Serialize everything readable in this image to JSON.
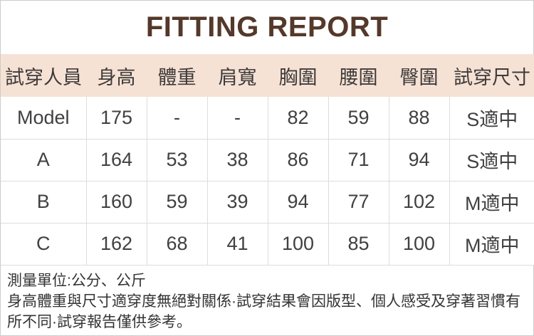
{
  "title": "FITTING REPORT",
  "colors": {
    "title_text": "#54382a",
    "header_background": "#f5e2d5",
    "header_text": "#3f3a39",
    "body_text": "#404040",
    "grid_line": "#dddddd",
    "frame_border": "#cccccc",
    "note_text": "#333333"
  },
  "table": {
    "headers": [
      "試穿人員",
      "身高",
      "體重",
      "肩寬",
      "胸圍",
      "腰圍",
      "臀圍",
      "試穿尺寸"
    ],
    "rows": [
      [
        "Model",
        "175",
        "-",
        "-",
        "82",
        "59",
        "88",
        "S適中"
      ],
      [
        "A",
        "164",
        "53",
        "38",
        "86",
        "71",
        "94",
        "S適中"
      ],
      [
        "B",
        "160",
        "59",
        "39",
        "94",
        "77",
        "102",
        "M適中"
      ],
      [
        "C",
        "162",
        "68",
        "41",
        "100",
        "85",
        "100",
        "M適中"
      ]
    ]
  },
  "notes": {
    "unit_line": "測量單位:公分、公斤",
    "disclaimer": "身高體重與尺寸適穿度無絕對關係·試穿結果會因版型、個人感受及穿著習慣有所不同·試穿報告僅供參考。"
  }
}
